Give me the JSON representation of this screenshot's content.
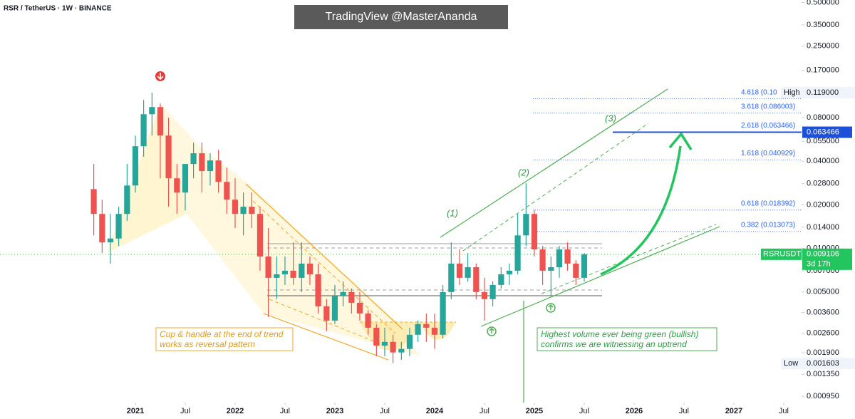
{
  "chart_data": {
    "type": "candlestick",
    "title": "RSR / TetherUS · 1W · BINANCE",
    "watermark": "TradingView @MasterAnanda",
    "log_scale": true,
    "grid": false,
    "up_color": "#26a69a",
    "down_color": "#ef5350",
    "xlim": [
      2019.643,
      2027.679
    ],
    "ylim": [
      0.00086,
      0.52
    ],
    "xticks": [
      2021,
      {
        "value": 2021.5,
        "label": "Jul"
      },
      2022,
      {
        "value": 2022.5,
        "label": "Jul"
      },
      2023,
      {
        "value": 2023.5,
        "label": "Jul"
      },
      2024,
      {
        "value": 2024.5,
        "label": "Jul"
      },
      2025,
      {
        "value": 2025.5,
        "label": "Jul"
      },
      2026,
      {
        "value": 2026.5,
        "label": "Jul"
      },
      2027,
      {
        "value": 2027.5,
        "label": "Jul"
      }
    ],
    "yticks": [
      {
        "value": 0.5,
        "label": "0.500000"
      },
      {
        "value": 0.35,
        "label": "0.350000"
      },
      {
        "value": 0.25,
        "label": "0.250000"
      },
      {
        "value": 0.17,
        "label": "0.170000"
      },
      {
        "value": 0.08,
        "label": "0.080000"
      },
      {
        "value": 0.055,
        "label": "0.055000"
      },
      {
        "value": 0.04,
        "label": "0.040000"
      },
      {
        "value": 0.028,
        "label": "0.028000"
      },
      {
        "value": 0.02,
        "label": "0.020000"
      },
      {
        "value": 0.014,
        "label": "0.014000"
      },
      {
        "value": 0.01,
        "label": "0.010000"
      },
      {
        "value": 0.007,
        "label": "0.007000"
      },
      {
        "value": 0.005,
        "label": "0.005000"
      },
      {
        "value": 0.0036,
        "label": "0.003600"
      },
      {
        "value": 0.0026,
        "label": "0.002600"
      },
      {
        "value": 0.0019,
        "label": "0.001900"
      },
      {
        "value": 0.00135,
        "label": "0.001350"
      },
      {
        "value": 0.00095,
        "label": "0.000950"
      }
    ],
    "x": [
      2020.583,
      2020.667,
      2020.75,
      2020.833,
      2020.917,
      2021.0,
      2021.083,
      2021.167,
      2021.25,
      2021.333,
      2021.417,
      2021.5,
      2021.583,
      2021.667,
      2021.75,
      2021.833,
      2021.917,
      2022.0,
      2022.083,
      2022.167,
      2022.25,
      2022.333,
      2022.417,
      2022.5,
      2022.583,
      2022.667,
      2022.75,
      2022.833,
      2022.917,
      2023.0,
      2023.083,
      2023.167,
      2023.25,
      2023.333,
      2023.417,
      2023.5,
      2023.583,
      2023.667,
      2023.75,
      2023.833,
      2023.917,
      2024.0,
      2024.083,
      2024.167,
      2024.25,
      2024.333,
      2024.417,
      2024.5,
      2024.583,
      2024.667,
      2024.75,
      2024.833,
      2024.917,
      2025.0,
      2025.083,
      2025.167,
      2025.25,
      2025.333,
      2025.417,
      2025.5
    ],
    "open": [
      0.0257,
      0.0173,
      0.011,
      0.0117,
      0.0173,
      0.0272,
      0.0508,
      0.0845,
      0.0947,
      0.0602,
      0.0305,
      0.0243,
      0.0383,
      0.0454,
      0.0342,
      0.0405,
      0.0288,
      0.0217,
      0.0173,
      0.0194,
      0.0173,
      0.00879,
      0.00626,
      0.00662,
      0.00701,
      0.00626,
      0.00785,
      0.00662,
      0.00398,
      0.00317,
      0.00471,
      0.00499,
      0.00421,
      0.00355,
      0.00283,
      0.00213,
      0.00226,
      0.00191,
      0.00202,
      0.00253,
      0.003,
      0.00283,
      0.00253,
      0.00499,
      0.00785,
      0.00626,
      0.00741,
      0.00499,
      0.00446,
      0.00559,
      0.00662,
      0.00701,
      0.0123,
      0.0173,
      0.00984,
      0.00701,
      0.00741,
      0.00984,
      0.00785,
      0.00626
    ],
    "high": [
      0.0383,
      0.0217,
      0.0173,
      0.0194,
      0.0383,
      0.0602,
      0.106,
      0.1187,
      0.1002,
      0.0799,
      0.0383,
      0.0342,
      0.0538,
      0.0538,
      0.0454,
      0.048,
      0.0362,
      0.0305,
      0.0243,
      0.0243,
      0.0194,
      0.0138,
      0.00879,
      0.00879,
      0.011,
      0.011,
      0.00879,
      0.00785,
      0.00446,
      0.00559,
      0.00591,
      0.00528,
      0.00499,
      0.00376,
      0.003,
      0.00283,
      0.00253,
      0.00226,
      0.00283,
      0.00317,
      0.00355,
      0.00355,
      0.00559,
      0.011,
      0.00984,
      0.0093,
      0.00785,
      0.00626,
      0.00591,
      0.00741,
      0.00785,
      0.0173,
      0.0282,
      0.0183,
      0.0104,
      0.00879,
      0.0104,
      0.011,
      0.0083,
      0.0093
    ],
    "low": [
      0.0123,
      0.0093,
      0.00785,
      0.0104,
      0.0155,
      0.0243,
      0.0429,
      0.0602,
      0.0305,
      0.0194,
      0.0173,
      0.0183,
      0.0305,
      0.0243,
      0.0272,
      0.0243,
      0.0173,
      0.0138,
      0.0123,
      0.0138,
      0.00701,
      0.00336,
      0.00446,
      0.00559,
      0.00559,
      0.00499,
      0.00559,
      0.00355,
      0.00268,
      0.003,
      0.00398,
      0.00355,
      0.00317,
      0.00253,
      0.0018,
      0.0018,
      0.00161,
      0.0017,
      0.0018,
      0.00226,
      0.00226,
      0.00202,
      0.00239,
      0.00446,
      0.00559,
      0.00591,
      0.00446,
      0.00317,
      0.00398,
      0.00528,
      0.00559,
      0.00662,
      0.0104,
      0.00879,
      0.00559,
      0.00471,
      0.00626,
      0.00701,
      0.00559,
      0.00591
    ],
    "close": [
      0.0173,
      0.011,
      0.0117,
      0.0173,
      0.0272,
      0.0508,
      0.0845,
      0.0947,
      0.0602,
      0.0305,
      0.0243,
      0.0383,
      0.0454,
      0.0342,
      0.0405,
      0.0288,
      0.0217,
      0.0173,
      0.0194,
      0.0173,
      0.00879,
      0.00626,
      0.00662,
      0.00701,
      0.00626,
      0.00785,
      0.00662,
      0.00398,
      0.00317,
      0.00471,
      0.00499,
      0.00421,
      0.00355,
      0.00283,
      0.00213,
      0.00226,
      0.00191,
      0.00202,
      0.00253,
      0.003,
      0.00283,
      0.00253,
      0.00499,
      0.00785,
      0.00626,
      0.00741,
      0.00499,
      0.00446,
      0.00559,
      0.00662,
      0.00701,
      0.0123,
      0.0173,
      0.00984,
      0.00701,
      0.00741,
      0.00984,
      0.00785,
      0.00626,
      0.009106
    ],
    "fib_levels": [
      {
        "label": "4.618 (0.10",
        "value": 0.108
      },
      {
        "label": "3.618 (0.086003)",
        "value": 0.086003
      },
      {
        "label": "2.618 (0.063466)",
        "value": 0.063466,
        "axis_label": "0.063466"
      },
      {
        "label": "1.618 (0.040929)",
        "value": 0.040929
      },
      {
        "label": "0.618 (0.018392)",
        "value": 0.018392
      },
      {
        "label": "0.382 (0.013073)",
        "value": 0.013073
      }
    ],
    "high_marker": {
      "label": "High",
      "value": 0.119,
      "value_label": "0.119000"
    },
    "low_marker": {
      "label": "Low",
      "value": 0.001603,
      "value_label": "0.001603"
    },
    "current": {
      "name": "RSRUSDT",
      "value": 0.009106,
      "value_label": "0.009106",
      "countdown": "3d 17h"
    },
    "waves": [
      "(1)",
      "(2)",
      "(3)"
    ],
    "annotations": {
      "cup_handle": [
        "Cup & handle at the end of trend",
        "works as reversal pattern"
      ],
      "volume": [
        "Highest volume ever being green (bullish)",
        "confirms we are witnessing an uptrend"
      ]
    }
  }
}
